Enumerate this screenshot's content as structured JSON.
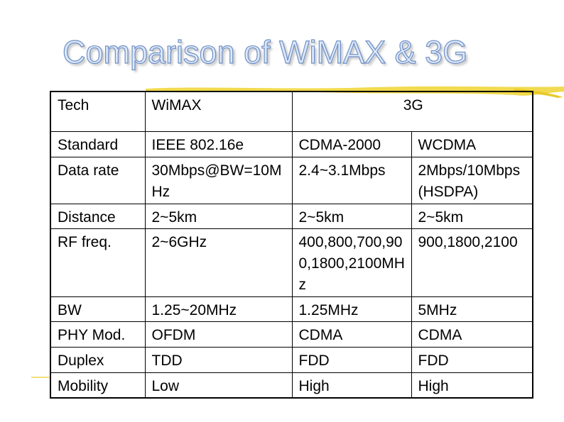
{
  "slide": {
    "title": "Comparison of WiMAX & 3G"
  },
  "table": {
    "header": {
      "tech": "Tech",
      "wimax": "WiMAX",
      "g3": "3G"
    },
    "rows": [
      {
        "label": "Standard",
        "wimax": "IEEE 802.16e",
        "cdma2000": "CDMA-2000",
        "wcdma": "WCDMA"
      },
      {
        "label": "Data rate",
        "wimax": "30Mbps@BW=10MHz",
        "cdma2000": "2.4~3.1Mbps",
        "wcdma": "2Mbps/10Mbps(HSDPA)"
      },
      {
        "label": "Distance",
        "wimax": "2~5km",
        "cdma2000": "2~5km",
        "wcdma": "2~5km"
      },
      {
        "label": "RF freq.",
        "wimax": "2~6GHz",
        "cdma2000": "400,800,700,900,1800,2100MHz",
        "wcdma": "900,1800,2100"
      },
      {
        "label": "BW",
        "wimax": "1.25~20MHz",
        "cdma2000": "1.25MHz",
        "wcdma": "5MHz"
      },
      {
        "label": "PHY Mod.",
        "wimax": "OFDM",
        "cdma2000": "CDMA",
        "wcdma": "CDMA"
      },
      {
        "label": "Duplex",
        "wimax": "TDD",
        "cdma2000": "FDD",
        "wcdma": "FDD"
      },
      {
        "label": "Mobility",
        "wimax": "Low",
        "cdma2000": "High",
        "wcdma": "High"
      }
    ]
  },
  "colors": {
    "title_fill": "#dde9fb",
    "title_outline": "#6f8fc4",
    "brush_accent": "#f0d63c",
    "grid_lines": "#000000"
  }
}
